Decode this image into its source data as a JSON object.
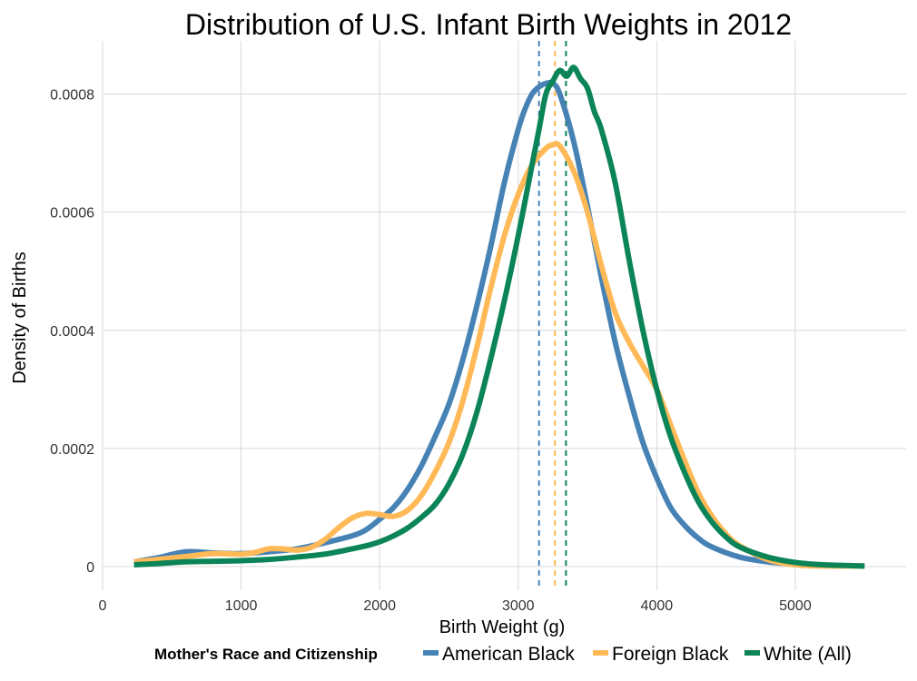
{
  "chart_data": {
    "type": "line",
    "title": "Distribution of U.S. Infant Birth Weights in 2012",
    "xlabel": "Birth Weight (g)",
    "ylabel": "Density of Births",
    "xlim": [
      0,
      5800
    ],
    "ylim": [
      -4e-05,
      0.00089
    ],
    "x_ticks": [
      0,
      1000,
      2000,
      3000,
      4000,
      5000
    ],
    "x_tick_labels": [
      "0",
      "1000",
      "2000",
      "3000",
      "4000",
      "5000"
    ],
    "y_ticks": [
      0,
      0.0002,
      0.0004,
      0.0006,
      0.0008
    ],
    "y_tick_labels": [
      "0",
      "0.0002",
      "0.0004",
      "0.0006",
      "0.0008"
    ],
    "grid": true,
    "legend": {
      "title": "Mother's Race and Citizenship",
      "position": "bottom"
    },
    "series": [
      {
        "name": "American Black",
        "color": "#4682b4",
        "mean_line": 3150,
        "points": [
          [
            227,
            8e-06
          ],
          [
            400,
            1.5e-05
          ],
          [
            600,
            2.5e-05
          ],
          [
            800,
            2.3e-05
          ],
          [
            1000,
            2.2e-05
          ],
          [
            1200,
            2.5e-05
          ],
          [
            1400,
            3e-05
          ],
          [
            1600,
            4e-05
          ],
          [
            1800,
            5.2e-05
          ],
          [
            1900,
            6.2e-05
          ],
          [
            2000,
            8e-05
          ],
          [
            2100,
            0.0001
          ],
          [
            2200,
            0.00013
          ],
          [
            2300,
            0.00017
          ],
          [
            2400,
            0.00022
          ],
          [
            2500,
            0.000275
          ],
          [
            2600,
            0.00035
          ],
          [
            2700,
            0.00044
          ],
          [
            2800,
            0.00054
          ],
          [
            2900,
            0.00065
          ],
          [
            3000,
            0.00074
          ],
          [
            3050,
            0.000775
          ],
          [
            3100,
            0.0008
          ],
          [
            3150,
            0.000812
          ],
          [
            3200,
            0.000818
          ],
          [
            3250,
            0.000818
          ],
          [
            3300,
            0.0008
          ],
          [
            3400,
            0.00072
          ],
          [
            3500,
            0.00061
          ],
          [
            3600,
            0.00049
          ],
          [
            3700,
            0.00038
          ],
          [
            3800,
            0.00029
          ],
          [
            3900,
            0.00021
          ],
          [
            4000,
            0.00015
          ],
          [
            4100,
            0.0001
          ],
          [
            4200,
            7e-05
          ],
          [
            4300,
            4.8e-05
          ],
          [
            4400,
            3.3e-05
          ],
          [
            4600,
            1.6e-05
          ],
          [
            4800,
            8e-06
          ],
          [
            5000,
            4e-06
          ],
          [
            5200,
            2e-06
          ],
          [
            5500,
            1e-06
          ]
        ]
      },
      {
        "name": "Foreign Black",
        "color": "#ffb957",
        "mean_line": 3265,
        "points": [
          [
            227,
            8e-06
          ],
          [
            400,
            1.2e-05
          ],
          [
            600,
            1.7e-05
          ],
          [
            800,
            2.2e-05
          ],
          [
            1000,
            2.1e-05
          ],
          [
            1100,
            2.4e-05
          ],
          [
            1200,
            3e-05
          ],
          [
            1300,
            3e-05
          ],
          [
            1400,
            2.8e-05
          ],
          [
            1500,
            3.2e-05
          ],
          [
            1600,
            4.5e-05
          ],
          [
            1700,
            6.5e-05
          ],
          [
            1800,
            8.2e-05
          ],
          [
            1900,
            9e-05
          ],
          [
            2000,
            8.8e-05
          ],
          [
            2100,
            8.5e-05
          ],
          [
            2200,
            9.5e-05
          ],
          [
            2300,
            0.00012
          ],
          [
            2400,
            0.00016
          ],
          [
            2500,
            0.00021
          ],
          [
            2600,
            0.00028
          ],
          [
            2700,
            0.00037
          ],
          [
            2800,
            0.00047
          ],
          [
            2900,
            0.00056
          ],
          [
            3000,
            0.00063
          ],
          [
            3100,
            0.00068
          ],
          [
            3200,
            0.000708
          ],
          [
            3250,
            0.000714
          ],
          [
            3300,
            0.000712
          ],
          [
            3400,
            0.00067
          ],
          [
            3500,
            0.0006
          ],
          [
            3600,
            0.00051
          ],
          [
            3700,
            0.00043
          ],
          [
            3800,
            0.00038
          ],
          [
            3900,
            0.00034
          ],
          [
            4000,
            0.0003
          ],
          [
            4100,
            0.00024
          ],
          [
            4200,
            0.00018
          ],
          [
            4300,
            0.000125
          ],
          [
            4400,
            8.5e-05
          ],
          [
            4500,
            5.5e-05
          ],
          [
            4600,
            3.5e-05
          ],
          [
            4800,
            1.2e-05
          ],
          [
            5000,
            3e-06
          ],
          [
            5200,
            1e-06
          ],
          [
            5500,
            1e-06
          ]
        ]
      },
      {
        "name": "White (All)",
        "color": "#0b8457",
        "mean_line": 3345,
        "points": [
          [
            227,
            3e-06
          ],
          [
            400,
            5e-06
          ],
          [
            600,
            8e-06
          ],
          [
            800,
            9e-06
          ],
          [
            1000,
            1e-05
          ],
          [
            1200,
            1.2e-05
          ],
          [
            1400,
            1.6e-05
          ],
          [
            1600,
            2.1e-05
          ],
          [
            1800,
            3e-05
          ],
          [
            1900,
            3.5e-05
          ],
          [
            2000,
            4.2e-05
          ],
          [
            2100,
            5.2e-05
          ],
          [
            2200,
            6.5e-05
          ],
          [
            2300,
            8.3e-05
          ],
          [
            2400,
            0.000105
          ],
          [
            2500,
            0.00014
          ],
          [
            2600,
            0.00019
          ],
          [
            2700,
            0.00026
          ],
          [
            2800,
            0.00035
          ],
          [
            2900,
            0.00045
          ],
          [
            3000,
            0.00056
          ],
          [
            3100,
            0.00068
          ],
          [
            3150,
            0.00074
          ],
          [
            3200,
            0.0008
          ],
          [
            3250,
            0.000822
          ],
          [
            3300,
            0.00084
          ],
          [
            3350,
            0.00083
          ],
          [
            3400,
            0.000845
          ],
          [
            3450,
            0.000826
          ],
          [
            3500,
            0.00081
          ],
          [
            3550,
            0.00077
          ],
          [
            3600,
            0.00074
          ],
          [
            3700,
            0.00065
          ],
          [
            3800,
            0.00052
          ],
          [
            3900,
            0.0004
          ],
          [
            4000,
            0.0003
          ],
          [
            4100,
            0.00022
          ],
          [
            4200,
            0.00016
          ],
          [
            4300,
            0.00011
          ],
          [
            4400,
            7.5e-05
          ],
          [
            4500,
            5e-05
          ],
          [
            4600,
            3.3e-05
          ],
          [
            4800,
            1.6e-05
          ],
          [
            5000,
            7e-06
          ],
          [
            5200,
            3e-06
          ],
          [
            5500,
            1e-06
          ]
        ]
      }
    ]
  }
}
